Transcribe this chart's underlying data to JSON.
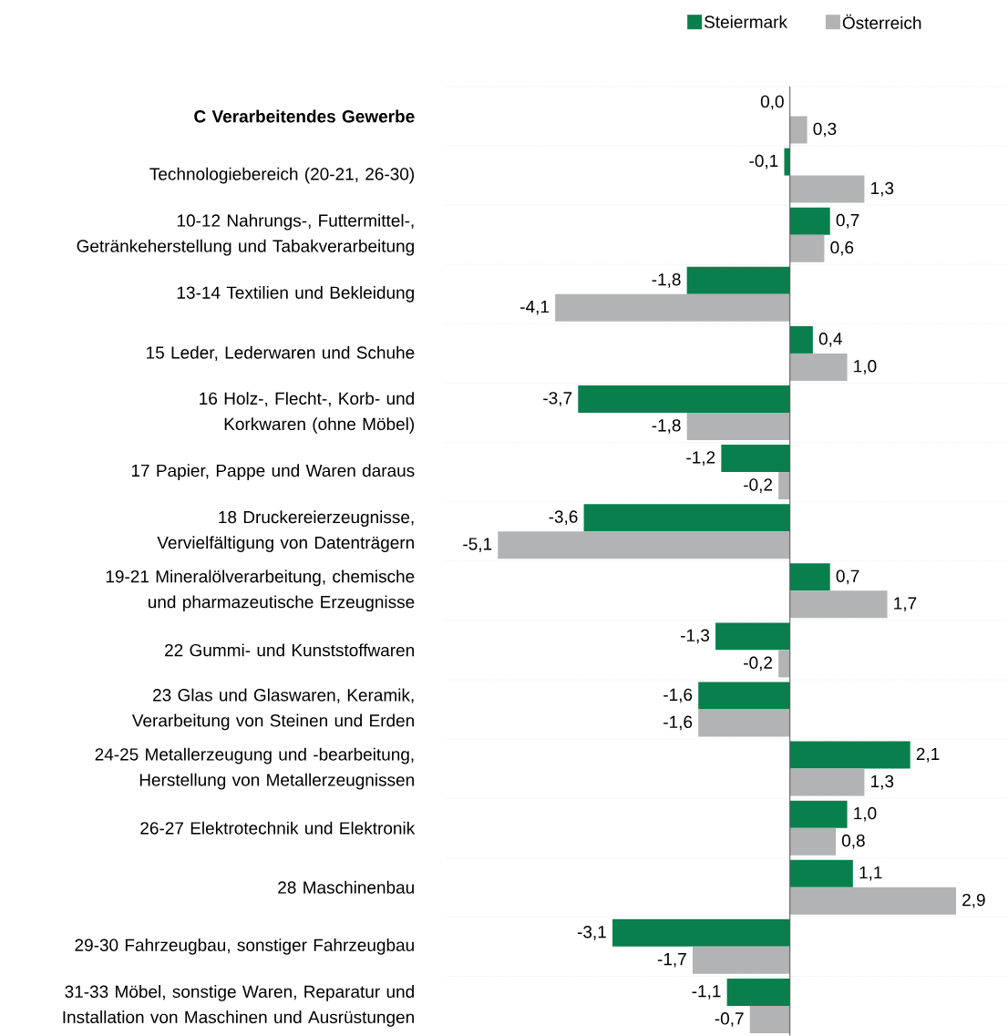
{
  "chart_data": {
    "type": "bar",
    "orientation": "horizontal",
    "grid": "y",
    "legend": "top right",
    "xlim": [
      -6,
      3.8
    ],
    "categories": [
      "**C Verarbeitendes Gewerbe**",
      "Technologiebereich (20-21, 26-30)",
      "10-12 Nahrungs-, Futtermittel-, Getränkeherstellung und Tabakverarbeitung",
      "13-14 Textilien und Bekleidung",
      "15 Leder, Lederwaren und Schuhe",
      "16 Holz-, Flecht-, Korb- und Korkwaren (ohne Möbel)",
      "17 Papier, Pappe und Waren daraus",
      "18 Druckereierzeugnisse, Vervielfältigung von Datenträgern",
      "19-21 Mineralölverarbeitung, chemische und pharmazeutische Erzeugnisse",
      "22 Gummi- und Kunststoffwaren",
      "23 Glas und Glaswaren, Keramik, Verarbeitung von Steinen und Erden",
      "24-25 Metallerzeugung und -bearbeitung, Herstellung von Metallerzeugnissen",
      "26-27 Elektrotechnik und Elektronik",
      "28 Maschinenbau",
      "29-30 Fahrzeugbau, sonstiger Fahrzeugbau",
      "31-33 Möbel, sonstige Waren, Reparatur und Installation von Maschinen und Ausrüstungen"
    ],
    "series": [
      {
        "name": "Steiermark",
        "color": "#087f4c",
        "values": [
          0.0,
          -0.1,
          0.7,
          -1.8,
          0.4,
          -3.7,
          -1.2,
          -3.6,
          0.7,
          -1.3,
          -1.6,
          2.1,
          1.0,
          1.1,
          -3.1,
          -1.1
        ],
        "value_labels": [
          "0,0",
          "-0,1",
          "0,7",
          "-1,8",
          "0,4",
          "-3,7",
          "-1,2",
          "-3,6",
          "0,7",
          "-1,3",
          "-1,6",
          "2,1",
          "1,0",
          "1,1",
          "-3,1",
          "-1,1"
        ]
      },
      {
        "name": "Österreich",
        "color": "#b1b3b4",
        "values": [
          0.3,
          1.3,
          0.6,
          -4.1,
          1.0,
          -1.8,
          -0.2,
          -5.1,
          1.7,
          -0.2,
          -1.6,
          1.3,
          0.8,
          2.9,
          -1.7,
          -0.7
        ],
        "value_labels": [
          "0,3",
          "1,3",
          "0,6",
          "-4,1",
          "1,0",
          "-1,8",
          "-0,2",
          "-5,1",
          "1,7",
          "-0,2",
          "-1,6",
          "1,3",
          "0,8",
          "2,9",
          "-1,7",
          "-0,7"
        ]
      }
    ]
  }
}
